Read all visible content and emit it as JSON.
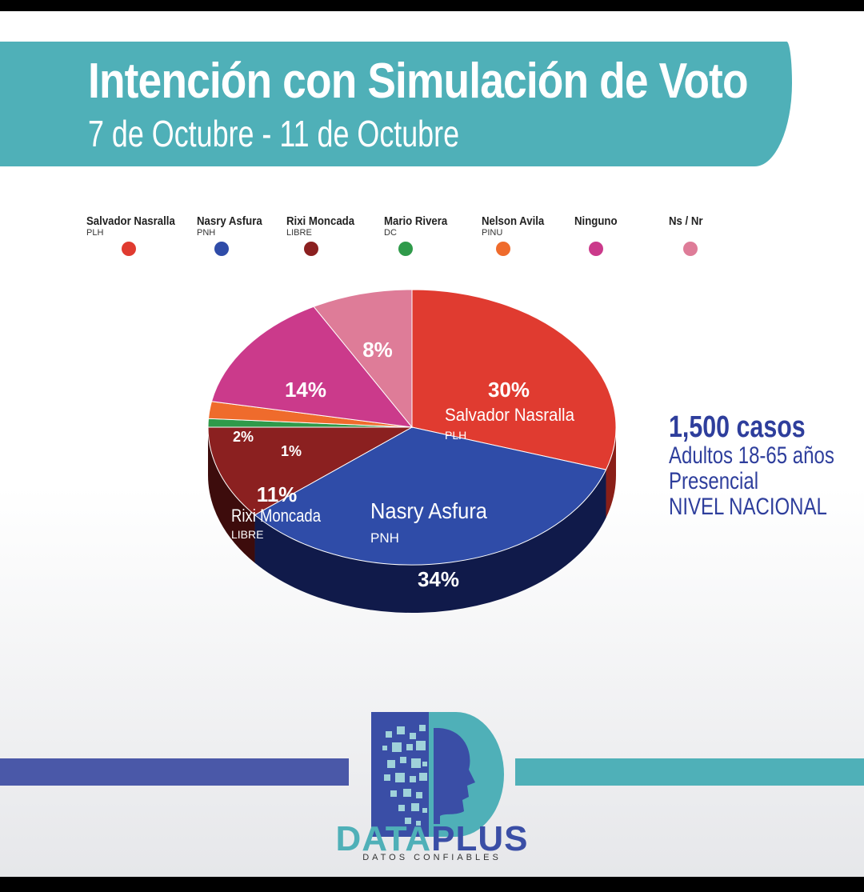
{
  "header": {
    "title": "Intención con Simulación de Voto",
    "subtitle": "7 de Octubre - 11 de Octubre"
  },
  "chart_data": {
    "type": "pie",
    "title": "Intención con Simulación de Voto",
    "slices": [
      {
        "name": "Salvador Nasralla",
        "party": "PLH",
        "value": 30,
        "label": "30%",
        "color": "#e03b30",
        "dark": "#8a1f18"
      },
      {
        "name": "Nasry Asfura",
        "party": "PNH",
        "value": 34,
        "label": "34%",
        "color": "#2f4ca8",
        "dark": "#101a4a"
      },
      {
        "name": "Rixi Moncada",
        "party": "LIBRE",
        "value": 11,
        "label": "11%",
        "color": "#8b2020",
        "dark": "#3d0c0c"
      },
      {
        "name": "Mario Rivera",
        "party": "DC",
        "value": 1,
        "label": "1%",
        "color": "#2f9a4a",
        "dark": "#145224"
      },
      {
        "name": "Nelson Avila",
        "party": "PINU",
        "value": 2,
        "label": "2%",
        "color": "#ef6b2c",
        "dark": "#7a3010"
      },
      {
        "name": "Ninguno",
        "party": "",
        "value": 14,
        "label": "14%",
        "color": "#cb3a8b",
        "dark": "#6a1a46"
      },
      {
        "name": "Ns / Nr",
        "party": "",
        "value": 8,
        "label": "8%",
        "color": "#de7c98",
        "dark": "#7a3a4c"
      }
    ],
    "legend_placement": "top"
  },
  "pie_inline_labels": [
    {
      "index": 0,
      "name": "Salvador Nasralla",
      "party": "PLH"
    },
    {
      "index": 1,
      "name": "Nasry Asfura",
      "party": "PNH"
    },
    {
      "index": 2,
      "name": "Rixi Moncada",
      "party": "LIBRE"
    }
  ],
  "info": {
    "cases": "1,500 casos",
    "line1": "Adultos 18-65 años",
    "line2": "Presencial",
    "line3": "NIVEL NACIONAL"
  },
  "logo": {
    "name_part1": "DATA",
    "name_part2": "PLUS",
    "tagline": "DATOS CONFIABLES",
    "color1": "#4fb0b8",
    "color2": "#3a4ea6"
  }
}
